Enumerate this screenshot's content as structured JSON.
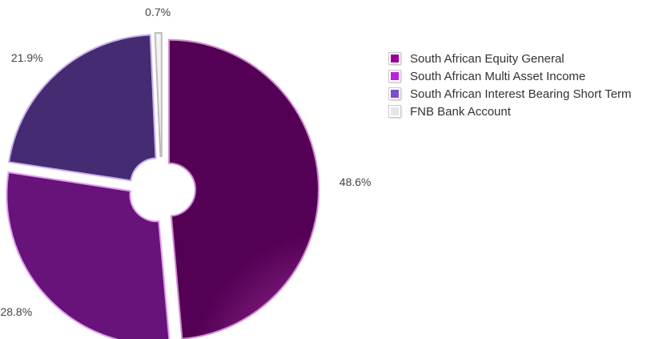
{
  "chart_data": {
    "type": "pie",
    "style": "donut-exploded",
    "start_angle_deg": 0,
    "direction": "clockwise",
    "slices": [
      {
        "name": "South African Equity General",
        "value": 48.6,
        "label": "48.6%",
        "color": "#990099"
      },
      {
        "name": "South African Multi Asset Income",
        "value": 28.8,
        "label": "28.8%",
        "color": "#BB22DD"
      },
      {
        "name": "South African Interest Bearing Short Term",
        "value": 21.9,
        "label": "21.9%",
        "color": "#7B4FCF"
      },
      {
        "name": "FNB Bank Account",
        "value": 0.7,
        "label": "0.7%",
        "color": "#E6E6E6"
      }
    ],
    "legend_position": "top-right"
  }
}
